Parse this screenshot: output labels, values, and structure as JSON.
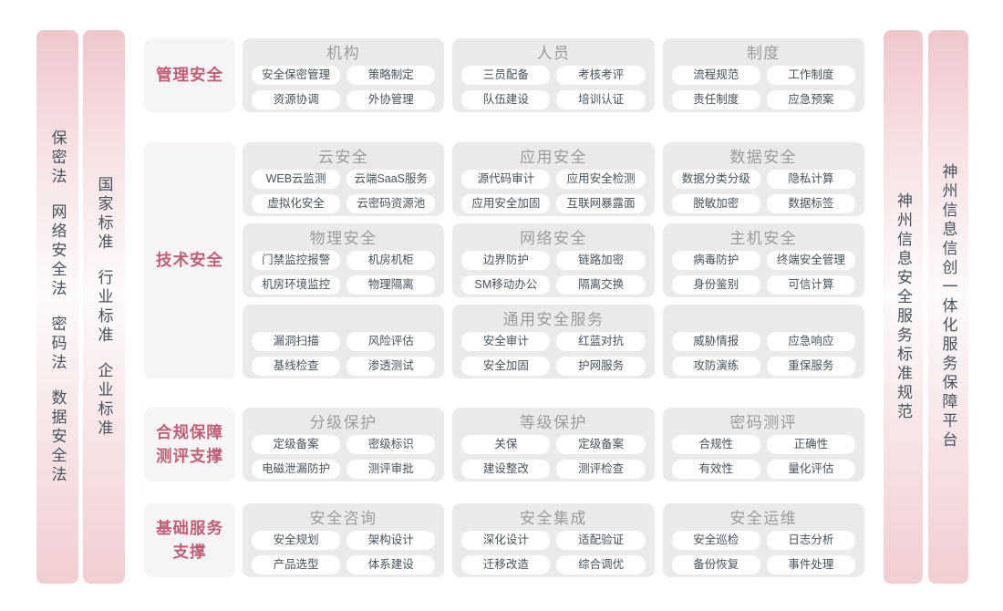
{
  "colors": {
    "bar_pink": "#efc7cc",
    "row_label_text": "#c05f78",
    "group_title_text": "#9b9ba0",
    "item_text": "#47525e",
    "group_bg": "#ebeaea",
    "row_label_bg": "#f6f4f4"
  },
  "left_bars": [
    {
      "phrases": [
        "保密法",
        "网络安全法",
        "密码法",
        "数据安全法"
      ]
    },
    {
      "phrases": [
        "国家标准",
        "行业标准",
        "企业标准"
      ]
    }
  ],
  "right_bars": [
    {
      "phrases": [
        "神州信息安全服务标准规范"
      ]
    },
    {
      "phrases": [
        "神州信息信创一体化服务保障平台"
      ]
    }
  ],
  "rows": [
    {
      "label": "管理安全",
      "bands": [
        {
          "groups": [
            {
              "title": "机构",
              "items": [
                "安全保密管理",
                "策略制定",
                "资源协调",
                "外协管理"
              ]
            },
            {
              "title": "人员",
              "items": [
                "三员配备",
                "考核考评",
                "队伍建设",
                "培训认证"
              ]
            },
            {
              "title": "制度",
              "items": [
                "流程规范",
                "工作制度",
                "责任制度",
                "应急预案"
              ]
            }
          ]
        }
      ]
    },
    {
      "label": "技术安全",
      "bands": [
        {
          "groups": [
            {
              "title": "云安全",
              "items": [
                "WEB云监测",
                "云端SaaS服务",
                "虚拟化安全",
                "云密码资源池"
              ]
            },
            {
              "title": "应用安全",
              "items": [
                "源代码审计",
                "应用安全检测",
                "应用安全加固",
                "互联网暴露面"
              ]
            },
            {
              "title": "数据安全",
              "items": [
                "数据分类分级",
                "隐私计算",
                "脱敏加密",
                "数据标签"
              ]
            }
          ]
        },
        {
          "groups": [
            {
              "title": "物理安全",
              "items": [
                "门禁监控报警",
                "机房机柜",
                "机房环境监控",
                "物理隔离"
              ]
            },
            {
              "title": "网络安全",
              "items": [
                "边界防护",
                "链路加密",
                "SM移动办公",
                "隔离交换"
              ]
            },
            {
              "title": "主机安全",
              "items": [
                "病毒防护",
                "终端安全管理",
                "身份鉴别",
                "可信计算"
              ]
            }
          ]
        },
        {
          "groups": [
            {
              "title": "",
              "items": [
                "漏洞扫描",
                "风险评估",
                "基线检查",
                "渗透测试"
              ]
            },
            {
              "title": "通用安全服务",
              "items": [
                "安全审计",
                "红蓝对抗",
                "安全加固",
                "护网服务"
              ]
            },
            {
              "title": "",
              "items": [
                "威胁情报",
                "应急响应",
                "攻防演练",
                "重保服务"
              ]
            }
          ]
        }
      ]
    },
    {
      "label": "合规保障\n测评支撑",
      "bands": [
        {
          "groups": [
            {
              "title": "分级保护",
              "items": [
                "定级备案",
                "密级标识",
                "电磁泄漏防护",
                "测评审批"
              ]
            },
            {
              "title": "等级保护",
              "items": [
                "关保",
                "定级备案",
                "建设整改",
                "测评检查"
              ]
            },
            {
              "title": "密码测评",
              "items": [
                "合规性",
                "正确性",
                "有效性",
                "量化评估"
              ]
            }
          ]
        }
      ]
    },
    {
      "label": "基础服务\n支撑",
      "bands": [
        {
          "groups": [
            {
              "title": "安全咨询",
              "items": [
                "安全规划",
                "架构设计",
                "产品选型",
                "体系建设"
              ]
            },
            {
              "title": "安全集成",
              "items": [
                "深化设计",
                "适配验证",
                "迁移改造",
                "综合调优"
              ]
            },
            {
              "title": "安全运维",
              "items": [
                "安全巡检",
                "日志分析",
                "备份恢复",
                "事件处理"
              ]
            }
          ]
        }
      ]
    }
  ]
}
